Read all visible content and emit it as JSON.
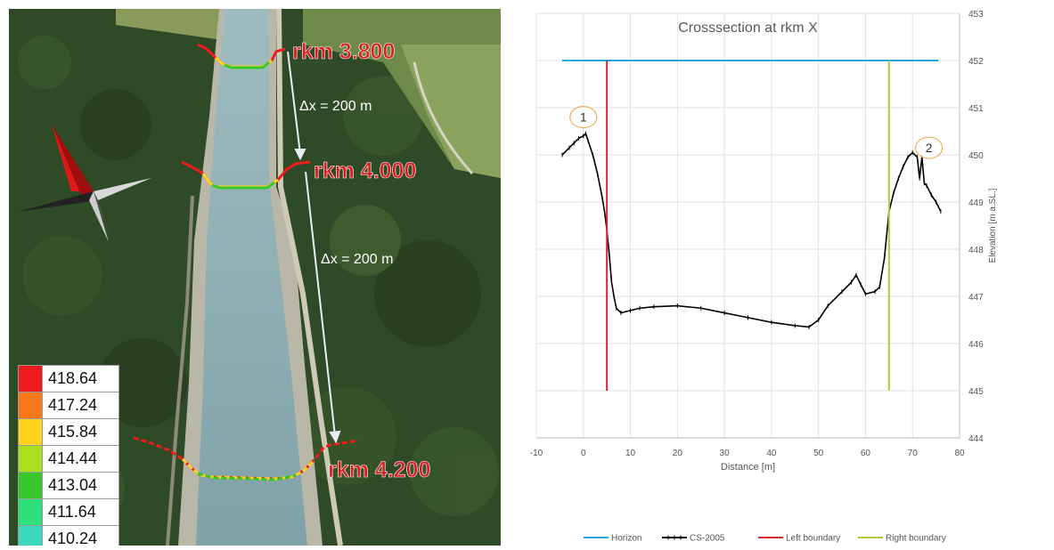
{
  "map": {
    "section_labels": [
      "rkm 3.800",
      "rkm 4.000",
      "rkm 4.200"
    ],
    "spacing_labels": [
      "Δx = 200 m",
      "Δx = 200 m"
    ],
    "elevation_legend": [
      {
        "value": "418.64",
        "color": "#ee1c1c"
      },
      {
        "value": "417.24",
        "color": "#f7791c"
      },
      {
        "value": "415.84",
        "color": "#ffd21e"
      },
      {
        "value": "414.44",
        "color": "#a8e01e"
      },
      {
        "value": "413.04",
        "color": "#37c82b"
      },
      {
        "value": "411.64",
        "color": "#2ee07a"
      },
      {
        "value": "410.24",
        "color": "#3ad8bd"
      }
    ]
  },
  "chart_data": {
    "type": "line",
    "title": "Crosssection at rkm X",
    "xlabel": "Distance [m]",
    "ylabel": "Elevation [m a.SL.]",
    "xlim": [
      -10,
      80
    ],
    "ylim": [
      444,
      453
    ],
    "xticks": [
      "-10",
      "0",
      "10",
      "20",
      "30",
      "40",
      "50",
      "60",
      "70",
      "80"
    ],
    "yticks": [
      "444",
      "445",
      "446",
      "447",
      "448",
      "449",
      "450",
      "451",
      "452",
      "453"
    ],
    "grid": true,
    "legend_position": "bottom",
    "annotations": [
      {
        "text": "1",
        "x": 0,
        "y": 450.8
      },
      {
        "text": "2",
        "x": 73.5,
        "y": 450.15
      }
    ],
    "series": [
      {
        "name": "Horizon",
        "color": "#1fa7e0",
        "x": [
          -4.5,
          75.5
        ],
        "y": [
          452,
          452
        ]
      },
      {
        "name": "CS-2005",
        "color": "#000000",
        "x": [
          -4.5,
          -3,
          -2,
          -1,
          0,
          0.5,
          1,
          2,
          3,
          4,
          4.5,
          5,
          5.5,
          6,
          6.5,
          7,
          8,
          10,
          12,
          15,
          20,
          25,
          30,
          35,
          40,
          45,
          48,
          50,
          52,
          55,
          57,
          58,
          59,
          60,
          62,
          63,
          64,
          65,
          66,
          67,
          68,
          69,
          70,
          71,
          71.5,
          72,
          72.5,
          73,
          74,
          75,
          76
        ],
        "y": [
          450.0,
          450.15,
          450.25,
          450.35,
          450.4,
          450.45,
          450.3,
          450.0,
          449.6,
          449.1,
          448.8,
          448.4,
          447.9,
          447.3,
          447.0,
          446.75,
          446.65,
          446.7,
          446.75,
          446.78,
          446.8,
          446.75,
          446.65,
          446.55,
          446.45,
          446.38,
          446.35,
          446.5,
          446.8,
          447.1,
          447.3,
          447.45,
          447.25,
          447.05,
          447.1,
          447.2,
          447.8,
          448.8,
          449.2,
          449.5,
          449.75,
          449.95,
          450.05,
          449.95,
          449.5,
          449.95,
          449.4,
          449.35,
          449.15,
          449.0,
          448.8
        ]
      },
      {
        "name": "Left boundary",
        "color": "#d42a2a",
        "x": [
          5,
          5
        ],
        "y": [
          445,
          452
        ]
      },
      {
        "name": "Right boundary",
        "color": "#b5c934",
        "x": [
          65,
          65
        ],
        "y": [
          445,
          452
        ]
      }
    ]
  }
}
